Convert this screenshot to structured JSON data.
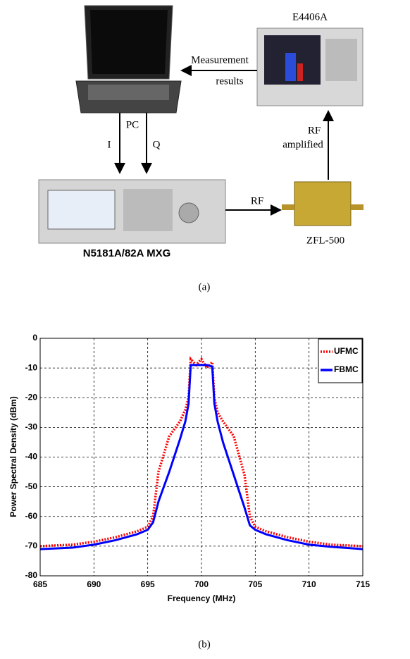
{
  "diagram": {
    "analyzer": "E4406A",
    "feedback_1": "Measurement",
    "feedback_2": "results",
    "pc": "PC",
    "i": "I",
    "q": "Q",
    "rf_amp_1": "RF",
    "rf_amp_2": "amplified",
    "rf": "RF",
    "generator": "N5181A/82A MXG",
    "amplifier": "ZFL-500",
    "caption": "(a)"
  },
  "chart_data": {
    "type": "line",
    "xlabel": "Frequency (MHz)",
    "ylabel": "Power Spectral Density (dBm)",
    "x": [
      685,
      688,
      690,
      692,
      694,
      695,
      695.5,
      696,
      697,
      698,
      698.5,
      698.8,
      699,
      699.5,
      700,
      700.5,
      701,
      701.2,
      701.5,
      702,
      703,
      704,
      704.5,
      705,
      706,
      708,
      710,
      712,
      715
    ],
    "series": [
      {
        "name": "UFMC",
        "color": "#ff0000",
        "values": [
          -70,
          -69.5,
          -68.5,
          -67,
          -65,
          -63.5,
          -60,
          -45,
          -33,
          -28,
          -24,
          -20,
          -7,
          -9,
          -7,
          -10,
          -8,
          -20,
          -25,
          -28,
          -33,
          -46,
          -60,
          -63.5,
          -65,
          -67,
          -68.5,
          -69.5,
          -70
        ]
      },
      {
        "name": "FBMC",
        "color": "#0000ff",
        "values": [
          -71,
          -70.5,
          -69.5,
          -68,
          -66,
          -64.5,
          -62,
          -55,
          -45,
          -34,
          -28,
          -22,
          -9,
          -9,
          -9,
          -9,
          -9.5,
          -22,
          -28,
          -35,
          -46,
          -57,
          -63,
          -64.5,
          -66,
          -68,
          -69.5,
          -70.2,
          -71
        ]
      }
    ],
    "xlim": [
      685,
      715
    ],
    "xticks": [
      685,
      690,
      695,
      700,
      705,
      710,
      715
    ],
    "ylim": [
      -80,
      0
    ],
    "yticks": [
      -80,
      -70,
      -60,
      -50,
      -40,
      -30,
      -20,
      -10,
      0
    ],
    "grid": true,
    "legend": "upper-right",
    "caption": "(b)"
  }
}
